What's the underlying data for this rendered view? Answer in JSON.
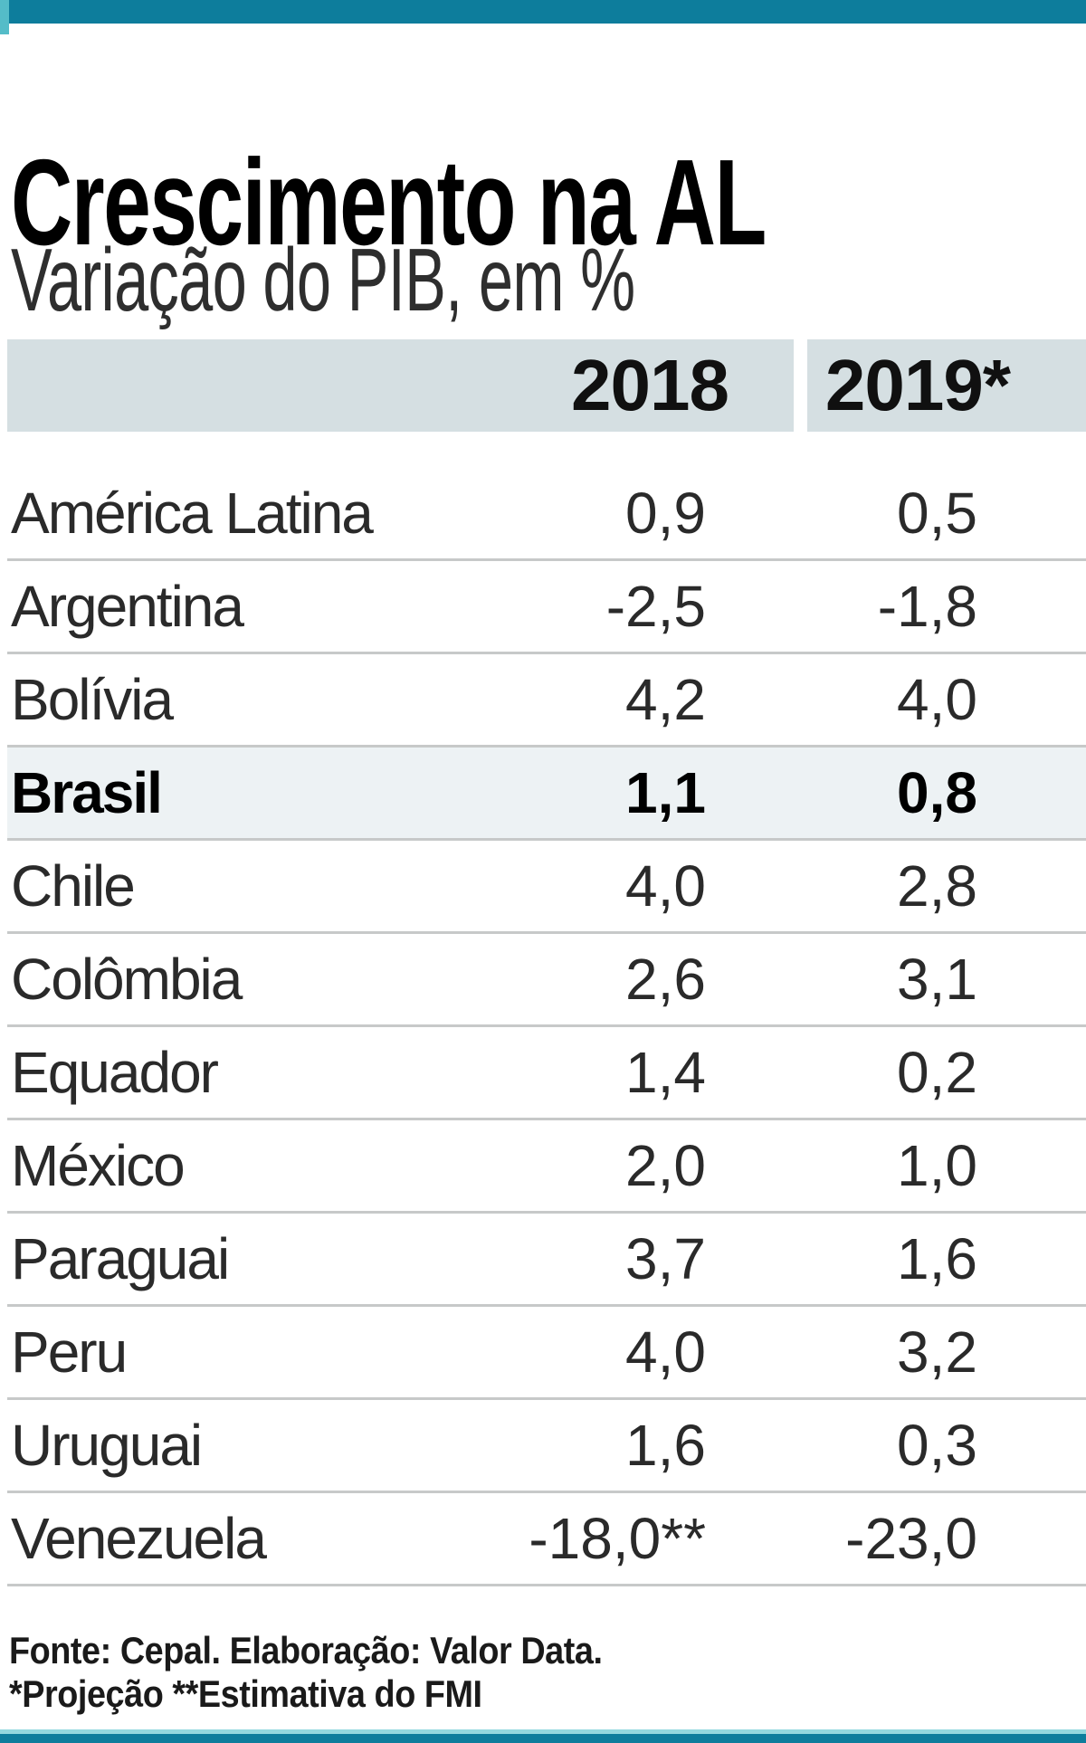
{
  "header": {
    "title": "Crescimento na AL",
    "subtitle": "Variação do PIB, em %"
  },
  "table": {
    "col_2018": "2018",
    "col_2019": "2019*",
    "rows": [
      {
        "name": "América Latina",
        "v2018": "0,9",
        "v2019": "0,5",
        "highlight": false
      },
      {
        "name": "Argentina",
        "v2018": "-2,5",
        "v2019": "-1,8",
        "highlight": false
      },
      {
        "name": "Bolívia",
        "v2018": "4,2",
        "v2019": "4,0",
        "highlight": false
      },
      {
        "name": "Brasil",
        "v2018": "1,1",
        "v2019": "0,8",
        "highlight": true
      },
      {
        "name": "Chile",
        "v2018": "4,0",
        "v2019": "2,8",
        "highlight": false
      },
      {
        "name": "Colômbia",
        "v2018": "2,6",
        "v2019": "3,1",
        "highlight": false
      },
      {
        "name": "Equador",
        "v2018": "1,4",
        "v2019": "0,2",
        "highlight": false
      },
      {
        "name": "México",
        "v2018": "2,0",
        "v2019": "1,0",
        "highlight": false
      },
      {
        "name": "Paraguai",
        "v2018": "3,7",
        "v2019": "1,6",
        "highlight": false
      },
      {
        "name": "Peru",
        "v2018": "4,0",
        "v2019": "3,2",
        "highlight": false
      },
      {
        "name": "Uruguai",
        "v2018": "1,6",
        "v2019": "0,3",
        "highlight": false
      },
      {
        "name": "Venezuela",
        "v2018": "-18,0**",
        "v2019": "-23,0",
        "highlight": false
      }
    ]
  },
  "footer": {
    "line1": "Fonte: Cepal. Elaboração: Valor Data.",
    "line2": "*Projeção **Estimativa do FMI"
  },
  "colors": {
    "accent_teal": "#0d7d9c",
    "accent_cyan_light": "#54bcc8",
    "accent_cyan_pale": "#93d8de",
    "header_band": "#d5dfe2",
    "highlight_row": "#edf2f4",
    "row_separator": "#c7c9c9"
  },
  "chart_data": {
    "type": "table",
    "title": "Crescimento na AL",
    "subtitle": "Variação do PIB, em %",
    "columns": [
      "2018",
      "2019*"
    ],
    "rows": [
      {
        "label": "América Latina",
        "2018": 0.9,
        "2019": 0.5
      },
      {
        "label": "Argentina",
        "2018": -2.5,
        "2019": -1.8
      },
      {
        "label": "Bolívia",
        "2018": 4.2,
        "2019": 4.0
      },
      {
        "label": "Brasil",
        "2018": 1.1,
        "2019": 0.8
      },
      {
        "label": "Chile",
        "2018": 4.0,
        "2019": 2.8
      },
      {
        "label": "Colômbia",
        "2018": 2.6,
        "2019": 3.1
      },
      {
        "label": "Equador",
        "2018": 1.4,
        "2019": 0.2
      },
      {
        "label": "México",
        "2018": 2.0,
        "2019": 1.0
      },
      {
        "label": "Paraguai",
        "2018": 3.7,
        "2019": 1.6
      },
      {
        "label": "Peru",
        "2018": 4.0,
        "2019": 3.2
      },
      {
        "label": "Uruguai",
        "2018": 1.6,
        "2019": 0.3
      },
      {
        "label": "Venezuela",
        "2018": -18.0,
        "2019": -23.0
      }
    ],
    "notes": "Brasil row highlighted; -18,0 flagged ** (Estimativa do FMI); 2019 values flagged * (Projeção)",
    "source": "Fonte: Cepal. Elaboração: Valor Data."
  }
}
